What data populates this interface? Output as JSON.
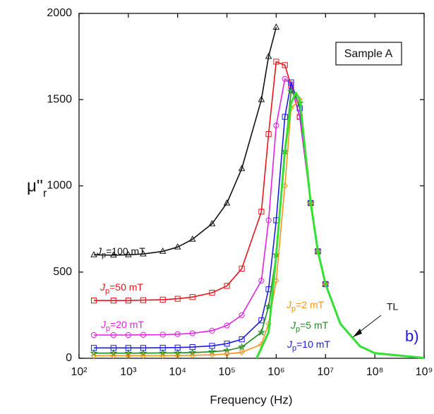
{
  "chart_data": {
    "type": "line",
    "log_x": true,
    "xlabel": "Frequency (Hz)",
    "ylabel": {
      "symbol": "μ''",
      "subscript": "r"
    },
    "xlim": [
      100,
      1000000000
    ],
    "ylim": [
      0,
      2000
    ],
    "xticks": [
      {
        "value": 100,
        "label": "10²"
      },
      {
        "value": 1000,
        "label": "10³"
      },
      {
        "value": 10000,
        "label": "10⁴"
      },
      {
        "value": 100000,
        "label": "10⁵"
      },
      {
        "value": 1000000,
        "label": "10⁶"
      },
      {
        "value": 10000000,
        "label": "10⁷"
      },
      {
        "value": 100000000,
        "label": "10⁸"
      },
      {
        "value": 1000000000,
        "label": "10⁹"
      }
    ],
    "yticks": [
      0,
      500,
      1000,
      1500,
      2000
    ],
    "annotations": [
      "Sample A",
      "b)"
    ],
    "series": [
      {
        "name": "Jp=100 mT",
        "color": "#111111",
        "marker": "triangle",
        "x": [
          200,
          500,
          1000,
          2000,
          5000,
          10000,
          20000,
          50000,
          100000,
          200000,
          500000,
          700000,
          1000000
        ],
        "values": [
          600,
          598,
          600,
          605,
          620,
          645,
          690,
          780,
          900,
          1100,
          1500,
          1750,
          1920
        ]
      },
      {
        "name": "Jp=50 mT",
        "color": "#e8141a",
        "marker": "square",
        "x": [
          200,
          500,
          1000,
          2000,
          5000,
          10000,
          20000,
          50000,
          100000,
          200000,
          500000,
          700000,
          1000000,
          1500000,
          2000000,
          3000000,
          5000000,
          7000000,
          10000000
        ],
        "values": [
          335,
          335,
          335,
          337,
          340,
          345,
          355,
          380,
          420,
          520,
          850,
          1300,
          1720,
          1700,
          1580,
          1400,
          900,
          620,
          430
        ]
      },
      {
        "name": "Jp=20 mT",
        "color": "#e61ee6",
        "marker": "circle",
        "x": [
          200,
          500,
          1000,
          2000,
          5000,
          10000,
          20000,
          50000,
          100000,
          200000,
          500000,
          700000,
          1000000,
          1500000,
          2000000,
          3000000,
          5000000,
          7000000,
          10000000
        ],
        "values": [
          135,
          135,
          135,
          136,
          137,
          140,
          145,
          160,
          190,
          250,
          450,
          800,
          1350,
          1620,
          1590,
          1400,
          900,
          620,
          430
        ]
      },
      {
        "name": "Jp=10 mT",
        "color": "#1a1ae0",
        "marker": "square",
        "x": [
          200,
          500,
          1000,
          2000,
          5000,
          10000,
          20000,
          50000,
          100000,
          200000,
          500000,
          700000,
          1000000,
          1500000,
          2000000,
          3000000,
          5000000,
          7000000,
          10000000
        ],
        "values": [
          60,
          60,
          60,
          60,
          61,
          62,
          65,
          72,
          85,
          110,
          220,
          400,
          800,
          1400,
          1600,
          1450,
          900,
          620,
          430
        ]
      },
      {
        "name": "Jp=5 mT",
        "color": "#1f8a1f",
        "marker": "star",
        "x": [
          200,
          500,
          1000,
          2000,
          5000,
          10000,
          20000,
          50000,
          100000,
          200000,
          500000,
          700000,
          1000000,
          1500000,
          2000000,
          3000000,
          5000000,
          7000000,
          10000000
        ],
        "values": [
          30,
          30,
          30,
          30,
          31,
          31,
          33,
          38,
          45,
          65,
          150,
          300,
          600,
          1200,
          1550,
          1480,
          900,
          620,
          430
        ]
      },
      {
        "name": "Jp=2 mT",
        "color": "#f7941d",
        "marker": "diamond",
        "x": [
          200,
          500,
          1000,
          2000,
          5000,
          10000,
          20000,
          50000,
          100000,
          200000,
          500000,
          700000,
          1000000,
          1500000,
          2000000,
          3000000,
          5000000,
          7000000,
          10000000
        ],
        "values": [
          15,
          15,
          15,
          15,
          15,
          16,
          17,
          20,
          25,
          35,
          80,
          200,
          450,
          1000,
          1450,
          1500,
          900,
          620,
          430
        ]
      },
      {
        "name": "TL",
        "color": "#33e033",
        "marker": "none",
        "x": [
          400000,
          700000,
          1000000,
          1500000,
          2000000,
          2500000,
          3000000,
          5000000,
          7000000,
          10000000,
          20000000,
          50000000,
          100000000,
          1000000000
        ],
        "values": [
          0,
          150,
          600,
          1200,
          1480,
          1540,
          1500,
          900,
          620,
          430,
          200,
          70,
          30,
          2
        ]
      }
    ]
  }
}
